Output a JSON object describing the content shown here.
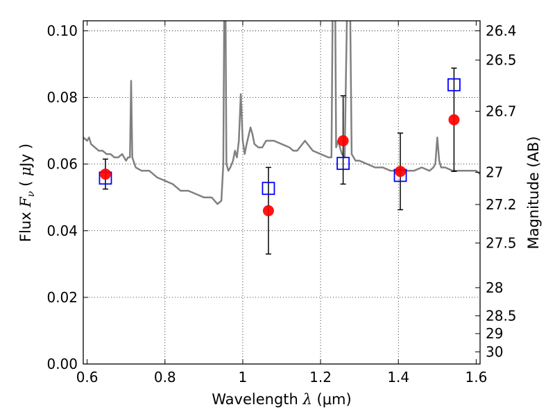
{
  "chart_data": {
    "type": "line",
    "title": "",
    "xlabel": "Wavelength  λ (μm)",
    "ylabel": "Flux  F_ν  ( μJy )",
    "ylabel_parts": {
      "pre": "Flux  ",
      "var": "F",
      "sub": "ν",
      "mid": "  ( ",
      "mu": "μ",
      "post": "Jy )"
    },
    "xlabel_parts": {
      "pre": "Wavelength  ",
      "var": "λ",
      "unit": " (μm)"
    },
    "y2label": "Magnitude (AB)",
    "xlim": [
      0.59,
      1.61
    ],
    "ylim": [
      0.0,
      0.103
    ],
    "grid": true,
    "x_ticks": [
      0.6,
      0.8,
      1.0,
      1.2,
      1.4,
      1.6
    ],
    "x_tick_labels": [
      "0.6",
      "0.8",
      "1",
      "1.2",
      "1.4",
      "1.6"
    ],
    "y_ticks": [
      0.0,
      0.02,
      0.04,
      0.06,
      0.08,
      0.1
    ],
    "y_tick_labels": [
      "0.00",
      "0.02",
      "0.04",
      "0.06",
      "0.08",
      "0.10"
    ],
    "y2_tick_labels": [
      "26.4",
      "26.5",
      "26.7",
      "27",
      "27.2",
      "27.5",
      "28",
      "28.5",
      "29",
      "30"
    ],
    "y2_tick_values": [
      26.4,
      26.5,
      26.7,
      27.0,
      27.2,
      27.5,
      28.0,
      28.5,
      29.0,
      30.0
    ],
    "series": [
      {
        "role": "model_spectrum",
        "color": "#808080",
        "x": [
          0.59,
          0.6,
          0.605,
          0.61,
          0.62,
          0.63,
          0.64,
          0.65,
          0.66,
          0.67,
          0.68,
          0.69,
          0.7,
          0.705,
          0.71,
          0.713,
          0.716,
          0.719,
          0.725,
          0.74,
          0.76,
          0.78,
          0.8,
          0.82,
          0.84,
          0.86,
          0.88,
          0.9,
          0.92,
          0.935,
          0.945,
          0.95,
          0.953,
          0.955,
          0.958,
          0.963,
          0.968,
          0.975,
          0.98,
          0.985,
          0.99,
          0.995,
          1.0,
          1.005,
          1.01,
          1.02,
          1.025,
          1.03,
          1.04,
          1.05,
          1.06,
          1.08,
          1.1,
          1.12,
          1.13,
          1.14,
          1.16,
          1.18,
          1.2,
          1.22,
          1.228,
          1.232,
          1.237,
          1.24,
          1.245,
          1.255,
          1.262,
          1.27,
          1.275,
          1.28,
          1.285,
          1.29,
          1.3,
          1.32,
          1.34,
          1.36,
          1.38,
          1.4,
          1.42,
          1.44,
          1.46,
          1.48,
          1.49,
          1.495,
          1.5,
          1.505,
          1.51,
          1.52,
          1.54,
          1.56,
          1.58,
          1.6,
          1.61
        ],
        "y": [
          0.068,
          0.067,
          0.068,
          0.066,
          0.065,
          0.064,
          0.064,
          0.063,
          0.063,
          0.062,
          0.062,
          0.063,
          0.061,
          0.062,
          0.062,
          0.085,
          0.062,
          0.061,
          0.059,
          0.058,
          0.058,
          0.056,
          0.055,
          0.054,
          0.052,
          0.052,
          0.051,
          0.05,
          0.05,
          0.048,
          0.049,
          0.06,
          0.12,
          0.12,
          0.06,
          0.058,
          0.059,
          0.061,
          0.064,
          0.062,
          0.067,
          0.081,
          0.067,
          0.063,
          0.066,
          0.071,
          0.069,
          0.066,
          0.065,
          0.065,
          0.067,
          0.067,
          0.066,
          0.065,
          0.064,
          0.064,
          0.067,
          0.064,
          0.063,
          0.062,
          0.062,
          0.12,
          0.12,
          0.065,
          0.067,
          0.063,
          0.062,
          0.12,
          0.12,
          0.063,
          0.062,
          0.061,
          0.061,
          0.06,
          0.059,
          0.059,
          0.058,
          0.058,
          0.058,
          0.058,
          0.059,
          0.058,
          0.059,
          0.06,
          0.068,
          0.061,
          0.059,
          0.059,
          0.058,
          0.058,
          0.058,
          0.058,
          0.057
        ]
      },
      {
        "role": "observed_flux",
        "marker": "circle",
        "color": "#ff0000",
        "x": [
          0.647,
          1.066,
          1.258,
          1.405,
          1.543
        ],
        "y": [
          0.057,
          0.046,
          0.067,
          0.0578,
          0.0733
        ],
        "err_low": [
          0.0045,
          0.013,
          0.013,
          0.0115,
          0.0155
        ],
        "err_high": [
          0.0045,
          0.013,
          0.0135,
          0.0115,
          0.0155
        ]
      },
      {
        "role": "model_band_flux",
        "marker": "open-square",
        "color": "#0000ff",
        "x": [
          0.647,
          1.066,
          1.258,
          1.405,
          1.543
        ],
        "y": [
          0.0558,
          0.0527,
          0.0602,
          0.0566,
          0.0838
        ]
      }
    ]
  }
}
